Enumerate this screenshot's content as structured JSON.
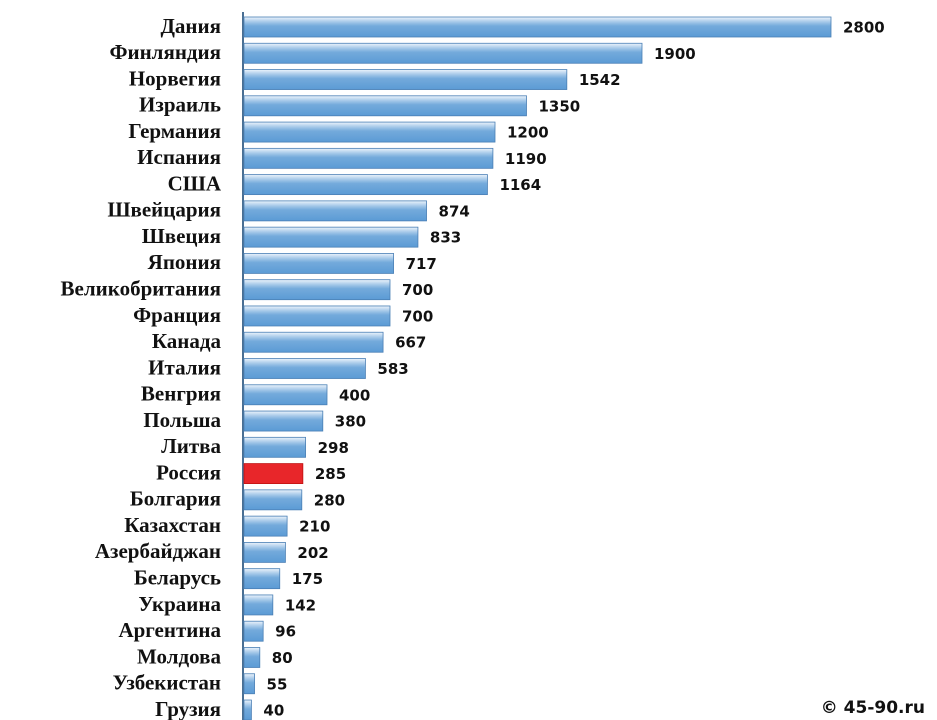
{
  "chart_data": {
    "type": "bar",
    "orientation": "horizontal",
    "categories": [
      "Дания",
      "Финляндия",
      "Норвегия",
      "Израиль",
      "Германия",
      "Испания",
      "США",
      "Швейцария",
      "Швеция",
      "Япония",
      "Великобритания",
      "Франция",
      "Канада",
      "Италия",
      "Венгрия",
      "Польша",
      "Литва",
      "Россия",
      "Болгария",
      "Казахстан",
      "Азербайджан",
      "Беларусь",
      "Украина",
      "Аргентина",
      "Молдова",
      "Узбекистан",
      "Грузия"
    ],
    "values": [
      2800,
      1900,
      1542,
      1350,
      1200,
      1190,
      1164,
      874,
      833,
      717,
      700,
      700,
      667,
      583,
      400,
      380,
      298,
      285,
      280,
      210,
      202,
      175,
      142,
      96,
      80,
      55,
      40
    ],
    "colors": [
      "#5b9bd5",
      "#5b9bd5",
      "#5b9bd5",
      "#5b9bd5",
      "#5b9bd5",
      "#5b9bd5",
      "#5b9bd5",
      "#5b9bd5",
      "#5b9bd5",
      "#5b9bd5",
      "#5b9bd5",
      "#5b9bd5",
      "#5b9bd5",
      "#5b9bd5",
      "#5b9bd5",
      "#5b9bd5",
      "#5b9bd5",
      "#e8262a",
      "#5b9bd5",
      "#5b9bd5",
      "#5b9bd5",
      "#5b9bd5",
      "#5b9bd5",
      "#5b9bd5",
      "#5b9bd5",
      "#5b9bd5",
      "#5b9bd5"
    ],
    "credit": "© 45-90.ru"
  }
}
